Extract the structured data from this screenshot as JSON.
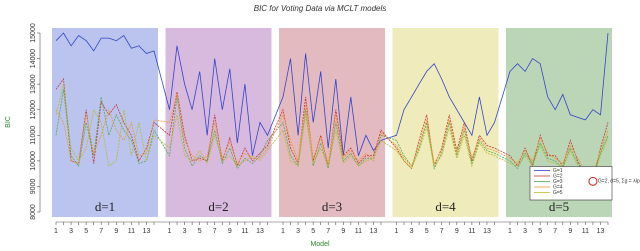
{
  "chart_data": {
    "type": "line",
    "title": "BIC for Voting Data via MCLT models",
    "x_label": "Model",
    "y_label": "BIC",
    "categories": [
      1,
      null,
      3,
      null,
      5,
      null,
      7,
      null,
      9,
      null,
      11,
      null,
      13,
      null,
      1,
      null,
      3,
      null,
      5,
      null,
      7,
      null,
      9,
      null,
      11,
      null,
      13,
      null,
      1,
      null,
      3,
      null,
      5,
      null,
      7,
      null,
      9,
      null,
      11,
      null,
      13,
      null,
      1,
      null,
      3,
      null,
      5,
      null,
      7,
      null,
      9,
      null,
      11,
      null,
      13,
      null,
      1,
      null,
      3,
      null,
      5,
      null,
      7,
      null,
      9,
      null,
      11,
      null,
      13,
      null
    ],
    "panels": [
      {
        "label": "d=1",
        "color": "#bac4ee"
      },
      {
        "label": "d=2",
        "color": "#d7badd"
      },
      {
        "label": "d=3",
        "color": "#e2bac0"
      },
      {
        "label": "d=4",
        "color": "#efebbb"
      },
      {
        "label": "d=5",
        "color": "#bbd5b7"
      }
    ],
    "series": [
      {
        "name": "G=1",
        "color": "#3344cc",
        "values": [
          14700,
          15000,
          14500,
          14900,
          14700,
          14300,
          14800,
          14800,
          14700,
          14900,
          14400,
          14500,
          14200,
          14300,
          12000,
          14500,
          13000,
          12000,
          13500,
          11000,
          14000,
          12000,
          13600,
          10700,
          13000,
          10200,
          11500,
          11000,
          12500,
          14000,
          11000,
          14200,
          11500,
          13500,
          10500,
          13200,
          10200,
          12500,
          10200,
          11000,
          10400,
          10800,
          11000,
          12000,
          12500,
          13000,
          13500,
          13800,
          13200,
          12500,
          12000,
          11500,
          11000,
          12500,
          11000,
          11500,
          13500,
          13800,
          13500,
          14000,
          13800,
          12500,
          12000,
          12600,
          11800,
          11700,
          11600,
          12000,
          11800,
          15000
        ]
      },
      {
        "name": "G=2",
        "color": "#cc3333",
        "values": [
          12800,
          13200,
          10000,
          9900,
          12000,
          9900,
          12300,
          11800,
          12200,
          11500,
          11000,
          10000,
          10500,
          11500,
          11000,
          12700,
          11000,
          10000,
          10100,
          10000,
          11800,
          10000,
          10900,
          9800,
          10500,
          10000,
          10300,
          10600,
          12000,
          10500,
          9900,
          12500,
          10000,
          11000,
          9800,
          12000,
          10200,
          10500,
          9900,
          10200,
          10200,
          11200,
          10500,
          10000,
          9700,
          10800,
          11800,
          9800,
          10500,
          11800,
          10400,
          11500,
          10000,
          11000,
          10600,
          10500,
          10200,
          9800,
          10500,
          9800,
          11000,
          10200,
          10200,
          9800,
          10800,
          10000,
          9400,
          9200,
          10500,
          11500
        ]
      },
      {
        "name": "G=3",
        "color": "#55aa55",
        "values": [
          11000,
          12800,
          10200,
          9800,
          11500,
          10200,
          12500,
          11000,
          11800,
          11200,
          10800,
          9900,
          10000,
          11200,
          10200,
          12500,
          10500,
          9800,
          10200,
          10000,
          11200,
          9900,
          10500,
          9700,
          10100,
          9900,
          10200,
          10800,
          11500,
          10200,
          9800,
          12000,
          9800,
          10700,
          9700,
          11500,
          10000,
          10300,
          9800,
          10100,
          10100,
          11000,
          10800,
          10200,
          9800,
          10500,
          11500,
          9700,
          10300,
          11500,
          10200,
          11200,
          9900,
          10800,
          10400,
          10300,
          10000,
          9700,
          10300,
          9900,
          10700,
          10100,
          10000,
          9700,
          10500,
          9900,
          9500,
          9400,
          10300,
          11000
        ]
      },
      {
        "name": "G=4",
        "color": "#ee9933",
        "values": [
          12000,
          11500,
          10000,
          9900,
          11800,
          10300,
          11000,
          12000,
          11200,
          10800,
          11500,
          10200,
          10300,
          11600,
          11500,
          12600,
          10800,
          10200,
          10000,
          10200,
          11500,
          10100,
          10700,
          9900,
          10300,
          10100,
          10100,
          10500,
          11800,
          10800,
          10000,
          12200,
          10100,
          10900,
          9900,
          11800,
          10100,
          10400,
          10000,
          10300,
          10000,
          11100,
          10600,
          10100,
          9800,
          10600,
          11600,
          9900,
          10400,
          11600,
          10300,
          11300,
          10100,
          10900,
          10500,
          10400,
          10100,
          9900,
          10400,
          10000,
          10900,
          10300,
          10100,
          9900,
          10600,
          10100,
          9600,
          9500,
          10400,
          11200
        ]
      },
      {
        "name": "G=5",
        "color": "#bbbb33",
        "values": [
          11800,
          13000,
          10500,
          10000,
          10500,
          12000,
          11500,
          9800,
          10000,
          12000,
          10200,
          11500,
          10000,
          11000,
          10500,
          11800,
          10200,
          10000,
          10400,
          9900,
          11000,
          10000,
          10200,
          9800,
          10000,
          10200,
          10000,
          10400,
          11200,
          10000,
          9800,
          11800,
          9900,
          10500,
          9800,
          11200,
          9900,
          10200,
          9800,
          10000,
          10100,
          10800,
          10400,
          10000,
          9700,
          10400,
          11300,
          9800,
          10200,
          11300,
          10100,
          11000,
          9800,
          10700,
          10300,
          10200,
          9900,
          9800,
          10200,
          9800,
          10600,
          10000,
          9900,
          9800,
          10400,
          9800,
          9400,
          9300,
          10200,
          10900
        ]
      }
    ],
    "ylim": [
      8000,
      15000
    ],
    "yticks": [
      8000,
      9000,
      10000,
      11000,
      12000,
      13000,
      14000,
      15000
    ],
    "legend_position": "bottom-right",
    "annotation": "G=2, d=5, Σg = λIp"
  }
}
